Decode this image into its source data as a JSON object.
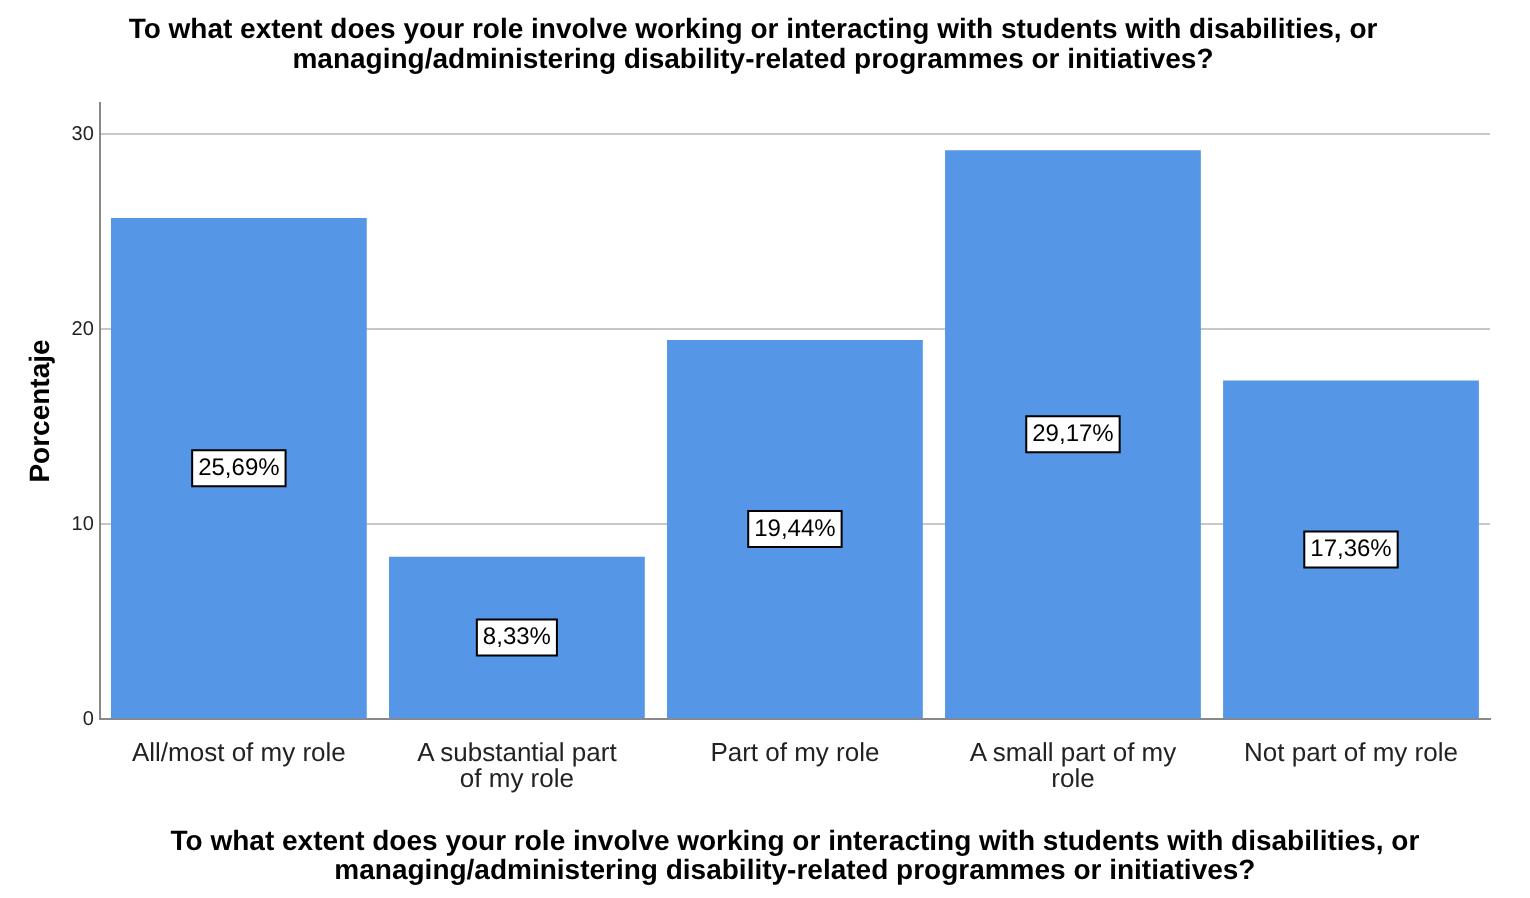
{
  "chart_data": {
    "type": "bar",
    "title": "To what extent does your role involve working or interacting with students with disabilities, or managing/administering disability-related programmes or initiatives?",
    "xlabel": "To what extent does your role involve working or interacting with students with disabilities, or managing/administering disability-related programmes or initiatives?",
    "ylabel": "Porcentaje",
    "categories": [
      "All/most of my role",
      "A substantial part of my role",
      "Part of my role",
      "A small part of my role",
      "Not part of my role"
    ],
    "values": [
      25.69,
      8.33,
      19.44,
      29.17,
      17.36
    ],
    "value_labels": [
      "25,69%",
      "8,33%",
      "19,44%",
      "29,17%",
      "17,36%"
    ],
    "color": "#5596e6",
    "ylim": [
      0,
      31.6
    ],
    "yticks": [
      0,
      10,
      20,
      30
    ],
    "grid": "y",
    "legend": false
  }
}
